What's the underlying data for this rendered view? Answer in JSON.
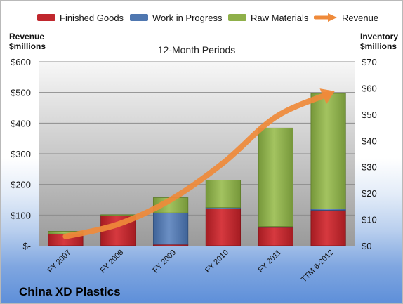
{
  "legend": {
    "finished_goods": "Finished Goods",
    "wip": "Work in Progress",
    "raw_materials": "Raw Materials",
    "revenue": "Revenue"
  },
  "left_axis_title_line1": "Revenue",
  "left_axis_title_line2": "$millions",
  "right_axis_title_line1": "Inventory",
  "right_axis_title_line2": "$millions",
  "company": "China XD Plastics",
  "colors": {
    "finished_goods": "#c0272d",
    "wip": "#4f77b0",
    "raw_materials": "#8fb04a",
    "revenue": "#ef8a3a"
  },
  "chart_data": {
    "type": "bar",
    "title": "12-Month Periods",
    "categories": [
      "FY 2007",
      "FY 2008",
      "FY 2009",
      "FY 2010",
      "FY 2011",
      "TTM 6-2012"
    ],
    "stacked": true,
    "series": [
      {
        "name": "Finished Goods",
        "axis": "right",
        "values": [
          4.5,
          11.5,
          0.5,
          14.0,
          7.0,
          13.5
        ]
      },
      {
        "name": "Work in Progress",
        "axis": "right",
        "values": [
          0,
          0,
          12.0,
          0.5,
          0.3,
          0.5
        ]
      },
      {
        "name": "Raw Materials",
        "axis": "right",
        "values": [
          1.0,
          0.3,
          5.8,
          10.5,
          37.5,
          44.0
        ]
      },
      {
        "name": "Revenue",
        "type": "line",
        "axis": "left",
        "values": [
          30,
          70,
          150,
          270,
          420,
          495
        ]
      }
    ],
    "ylabel_left": "Revenue $millions",
    "ylabel_right": "Inventory $millions",
    "ylim_left": [
      0,
      600
    ],
    "ylim_right": [
      0,
      70
    ],
    "yticks_left": [
      "$-",
      "$100",
      "$200",
      "$300",
      "$400",
      "$500",
      "$600"
    ],
    "yticks_right": [
      "$0",
      "$10",
      "$20",
      "$30",
      "$40",
      "$50",
      "$60",
      "$70"
    ],
    "grid": true,
    "legend_position": "top"
  }
}
